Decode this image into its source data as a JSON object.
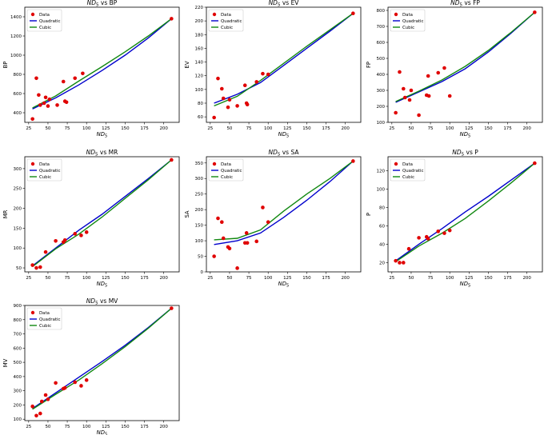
{
  "chart_data": [
    {
      "type": "scatter",
      "title": "ND5 vs BP",
      "xlabel": "ND5",
      "ylabel": "BP",
      "xlim": [
        20,
        220
      ],
      "ylim": [
        300,
        1500
      ],
      "xticks": [
        25,
        50,
        75,
        100,
        125,
        150,
        175,
        200
      ],
      "yticks": [
        400,
        600,
        800,
        1000,
        1200,
        1400
      ],
      "legend": "top-left",
      "legend_labels": [
        "Data",
        "Quadratic",
        "Cubic"
      ],
      "points": [
        [
          30,
          335
        ],
        [
          35,
          760
        ],
        [
          38,
          585
        ],
        [
          40,
          480
        ],
        [
          45,
          500
        ],
        [
          47,
          560
        ],
        [
          50,
          470
        ],
        [
          52,
          540
        ],
        [
          62,
          480
        ],
        [
          70,
          725
        ],
        [
          72,
          520
        ],
        [
          74,
          510
        ],
        [
          85,
          760
        ],
        [
          95,
          810
        ],
        [
          210,
          1380
        ]
      ],
      "quadratic": [
        [
          30,
          440
        ],
        [
          60,
          555
        ],
        [
          90,
          690
        ],
        [
          120,
          840
        ],
        [
          150,
          1000
        ],
        [
          180,
          1180
        ],
        [
          210,
          1380
        ]
      ],
      "cubic": [
        [
          30,
          450
        ],
        [
          60,
          575
        ],
        [
          90,
          730
        ],
        [
          120,
          880
        ],
        [
          150,
          1035
        ],
        [
          180,
          1200
        ],
        [
          210,
          1380
        ]
      ]
    },
    {
      "type": "scatter",
      "title": "ND5 vs EV",
      "xlabel": "ND5",
      "ylabel": "EV",
      "xlim": [
        20,
        220
      ],
      "ylim": [
        52,
        220
      ],
      "xticks": [
        25,
        50,
        75,
        100,
        125,
        150,
        175,
        200
      ],
      "yticks": [
        60,
        80,
        100,
        120,
        140,
        160,
        180,
        200,
        220
      ],
      "legend": "top-left",
      "legend_labels": [
        "Data",
        "Quadratic",
        "Cubic"
      ],
      "points": [
        [
          30,
          59
        ],
        [
          35,
          116
        ],
        [
          40,
          101
        ],
        [
          42,
          87
        ],
        [
          48,
          74
        ],
        [
          50,
          85
        ],
        [
          60,
          76
        ],
        [
          70,
          106
        ],
        [
          72,
          80
        ],
        [
          73,
          78
        ],
        [
          85,
          111
        ],
        [
          93,
          123
        ],
        [
          100,
          122
        ],
        [
          210,
          211
        ]
      ],
      "quadratic": [
        [
          30,
          80
        ],
        [
          60,
          93
        ],
        [
          90,
          110
        ],
        [
          120,
          135
        ],
        [
          150,
          160
        ],
        [
          180,
          185
        ],
        [
          210,
          211
        ]
      ],
      "cubic": [
        [
          30,
          76
        ],
        [
          60,
          90
        ],
        [
          90,
          113
        ],
        [
          120,
          138
        ],
        [
          150,
          163
        ],
        [
          180,
          187
        ],
        [
          210,
          211
        ]
      ]
    },
    {
      "type": "scatter",
      "title": "ND5 vs FP",
      "xlabel": "ND5",
      "ylabel": "FP",
      "xlim": [
        20,
        220
      ],
      "ylim": [
        100,
        820
      ],
      "xticks": [
        25,
        50,
        75,
        100,
        125,
        150,
        175,
        200
      ],
      "yticks": [
        100,
        200,
        300,
        400,
        500,
        600,
        700,
        800
      ],
      "legend": "top-left",
      "legend_labels": [
        "Data",
        "Quadratic",
        "Cubic"
      ],
      "points": [
        [
          30,
          160
        ],
        [
          35,
          415
        ],
        [
          40,
          310
        ],
        [
          42,
          255
        ],
        [
          48,
          240
        ],
        [
          50,
          300
        ],
        [
          60,
          145
        ],
        [
          70,
          270
        ],
        [
          72,
          390
        ],
        [
          73,
          265
        ],
        [
          85,
          410
        ],
        [
          93,
          440
        ],
        [
          100,
          265
        ],
        [
          210,
          788
        ]
      ],
      "quadratic": [
        [
          30,
          225
        ],
        [
          60,
          290
        ],
        [
          90,
          355
        ],
        [
          120,
          435
        ],
        [
          150,
          540
        ],
        [
          180,
          660
        ],
        [
          210,
          788
        ]
      ],
      "cubic": [
        [
          30,
          230
        ],
        [
          60,
          295
        ],
        [
          90,
          365
        ],
        [
          120,
          450
        ],
        [
          150,
          550
        ],
        [
          180,
          665
        ],
        [
          210,
          788
        ]
      ]
    },
    {
      "type": "scatter",
      "title": "ND5 vs MR",
      "xlabel": "ND5",
      "ylabel": "MR",
      "xlim": [
        20,
        220
      ],
      "ylim": [
        40,
        330
      ],
      "xticks": [
        25,
        50,
        75,
        100,
        125,
        150,
        175,
        200
      ],
      "yticks": [
        50,
        100,
        150,
        200,
        250,
        300
      ],
      "legend": "top-left",
      "legend_labels": [
        "Data",
        "Quadratic",
        "Cubic"
      ],
      "points": [
        [
          30,
          57
        ],
        [
          35,
          50
        ],
        [
          40,
          52
        ],
        [
          47,
          90
        ],
        [
          60,
          118
        ],
        [
          70,
          115
        ],
        [
          72,
          120
        ],
        [
          85,
          136
        ],
        [
          93,
          132
        ],
        [
          100,
          140
        ],
        [
          210,
          322
        ]
      ],
      "quadratic": [
        [
          30,
          55
        ],
        [
          60,
          100
        ],
        [
          90,
          145
        ],
        [
          120,
          185
        ],
        [
          150,
          230
        ],
        [
          180,
          275
        ],
        [
          210,
          322
        ]
      ],
      "cubic": [
        [
          30,
          53
        ],
        [
          60,
          98
        ],
        [
          90,
          135
        ],
        [
          120,
          178
        ],
        [
          150,
          225
        ],
        [
          180,
          272
        ],
        [
          210,
          322
        ]
      ]
    },
    {
      "type": "scatter",
      "title": "ND5 vs SA",
      "xlabel": "ND5",
      "ylabel": "SA",
      "xlim": [
        20,
        220
      ],
      "ylim": [
        0,
        370
      ],
      "xticks": [
        25,
        50,
        75,
        100,
        125,
        150,
        175,
        200
      ],
      "yticks": [
        0,
        50,
        100,
        150,
        200,
        250,
        300,
        350
      ],
      "legend": "top-left",
      "legend_labels": [
        "Data",
        "Quadratic",
        "Cubic"
      ],
      "points": [
        [
          30,
          50
        ],
        [
          35,
          172
        ],
        [
          40,
          160
        ],
        [
          42,
          108
        ],
        [
          48,
          80
        ],
        [
          50,
          75
        ],
        [
          60,
          12
        ],
        [
          70,
          93
        ],
        [
          72,
          125
        ],
        [
          73,
          93
        ],
        [
          85,
          98
        ],
        [
          93,
          207
        ],
        [
          100,
          160
        ],
        [
          210,
          356
        ]
      ],
      "quadratic": [
        [
          30,
          88
        ],
        [
          60,
          100
        ],
        [
          90,
          125
        ],
        [
          120,
          175
        ],
        [
          150,
          230
        ],
        [
          180,
          290
        ],
        [
          210,
          356
        ]
      ],
      "cubic": [
        [
          30,
          103
        ],
        [
          60,
          108
        ],
        [
          90,
          135
        ],
        [
          120,
          195
        ],
        [
          150,
          250
        ],
        [
          180,
          300
        ],
        [
          210,
          356
        ]
      ]
    },
    {
      "type": "scatter",
      "title": "ND5 vs P",
      "xlabel": "ND5",
      "ylabel": "P",
      "xlim": [
        20,
        220
      ],
      "ylim": [
        10,
        135
      ],
      "xticks": [
        25,
        50,
        75,
        100,
        125,
        150,
        175,
        200
      ],
      "yticks": [
        20,
        40,
        60,
        80,
        100,
        120
      ],
      "legend": "top-left",
      "legend_labels": [
        "Data",
        "Quadratic",
        "Cubic"
      ],
      "points": [
        [
          30,
          22
        ],
        [
          35,
          20
        ],
        [
          40,
          20
        ],
        [
          47,
          35
        ],
        [
          60,
          47
        ],
        [
          70,
          48
        ],
        [
          72,
          46
        ],
        [
          85,
          54
        ],
        [
          93,
          52
        ],
        [
          100,
          55
        ],
        [
          210,
          128
        ]
      ],
      "quadratic": [
        [
          30,
          22
        ],
        [
          60,
          40
        ],
        [
          90,
          57
        ],
        [
          120,
          75
        ],
        [
          150,
          92
        ],
        [
          180,
          110
        ],
        [
          210,
          128
        ]
      ],
      "cubic": [
        [
          30,
          21
        ],
        [
          60,
          38
        ],
        [
          90,
          52
        ],
        [
          120,
          68
        ],
        [
          150,
          87
        ],
        [
          180,
          107
        ],
        [
          210,
          128
        ]
      ]
    },
    {
      "type": "scatter",
      "title": "ND5 vs MV",
      "xlabel": "ND5",
      "ylabel": "MV",
      "xlim": [
        20,
        220
      ],
      "ylim": [
        90,
        900
      ],
      "xticks": [
        25,
        50,
        75,
        100,
        125,
        150,
        175,
        200
      ],
      "yticks": [
        100,
        200,
        300,
        400,
        500,
        600,
        700,
        800,
        900
      ],
      "legend": "top-left",
      "legend_labels": [
        "Data",
        "Quadratic",
        "Cubic"
      ],
      "points": [
        [
          30,
          190
        ],
        [
          35,
          125
        ],
        [
          40,
          140
        ],
        [
          42,
          225
        ],
        [
          47,
          270
        ],
        [
          50,
          240
        ],
        [
          60,
          355
        ],
        [
          70,
          315
        ],
        [
          72,
          320
        ],
        [
          85,
          360
        ],
        [
          93,
          335
        ],
        [
          100,
          375
        ],
        [
          210,
          880
        ]
      ],
      "quadratic": [
        [
          30,
          175
        ],
        [
          60,
          285
        ],
        [
          90,
          395
        ],
        [
          120,
          505
        ],
        [
          150,
          620
        ],
        [
          180,
          745
        ],
        [
          210,
          880
        ]
      ],
      "cubic": [
        [
          30,
          170
        ],
        [
          60,
          275
        ],
        [
          90,
          375
        ],
        [
          120,
          490
        ],
        [
          150,
          610
        ],
        [
          180,
          740
        ],
        [
          210,
          880
        ]
      ]
    }
  ]
}
